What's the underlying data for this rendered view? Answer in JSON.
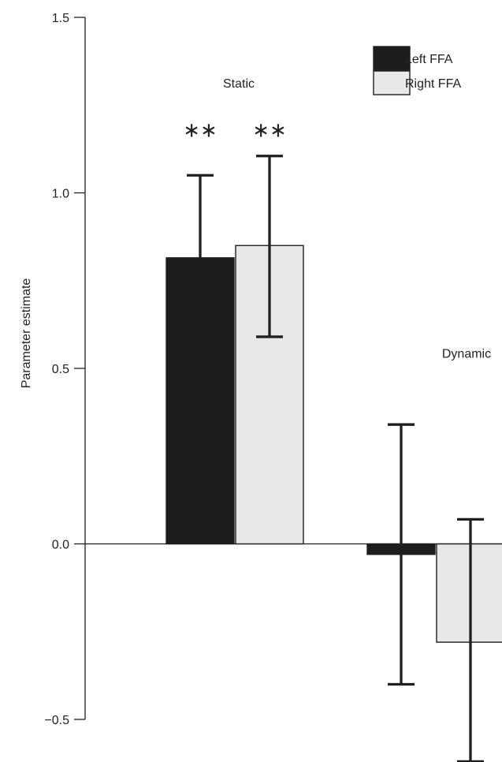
{
  "chart_data": {
    "type": "bar",
    "title": "",
    "xlabel": "",
    "ylabel": "Parameter estimate",
    "ylim": [
      -0.5,
      1.5
    ],
    "yticks": [
      "1.5",
      "1.0",
      "0.5",
      "0.0",
      "−0.5"
    ],
    "ytick_values": [
      1.5,
      1.0,
      0.5,
      0.0,
      -0.5
    ],
    "categories": [
      "Static",
      "Dynamic"
    ],
    "series": [
      {
        "name": "Left FFA",
        "color": "#1d1d1d",
        "values": [
          0.815,
          -0.03
        ],
        "error_upper": [
          1.05,
          0.34
        ],
        "error_lower": [
          0.815,
          -0.4
        ],
        "significance": [
          "**",
          ""
        ]
      },
      {
        "name": "Right FFA",
        "color": "#e8e8e8",
        "values": [
          0.85,
          -0.28
        ],
        "error_upper": [
          1.105,
          0.07
        ],
        "error_lower": [
          0.59,
          -0.62
        ],
        "significance": [
          "**",
          ""
        ]
      }
    ],
    "legend": {
      "position": "top-right",
      "entries": [
        "Left FFA",
        "Right FFA"
      ]
    },
    "grid": false
  }
}
